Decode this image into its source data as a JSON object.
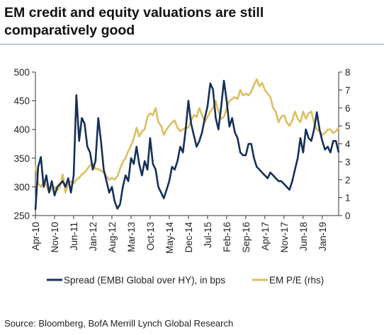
{
  "title": "EM credit and equity valuations are still comparatively good",
  "source": "Source: Bloomberg, BofA Merrill Lynch Global Research",
  "chart_data": {
    "type": "line",
    "title": "EM credit and equity valuations are still comparatively good",
    "x_tick_labels": [
      "Apr-10",
      "Nov-10",
      "Jun-11",
      "Jan-12",
      "Aug-12",
      "Mar-13",
      "Oct-13",
      "May-14",
      "Dec-14",
      "Jul-15",
      "Feb-16",
      "Sep-16",
      "Apr-17",
      "Nov-17",
      "Jun-18",
      "Jan-19"
    ],
    "x_range": [
      "2010-04",
      "2019-07"
    ],
    "y_left": {
      "ticks": [
        250,
        300,
        350,
        400,
        450,
        500
      ],
      "range": [
        250,
        500
      ]
    },
    "y_right": {
      "ticks": [
        0,
        1,
        2,
        3,
        4,
        5,
        6,
        7,
        8
      ],
      "range": [
        0,
        8
      ],
      "label": "rhs"
    },
    "legend_position": "bottom",
    "grid": false,
    "series": [
      {
        "name": "Spread (EMBI Global over HY), in bps",
        "axis": "left",
        "color": "#14305a",
        "points": [
          [
            "2010-04",
            260
          ],
          [
            "2010-05",
            335
          ],
          [
            "2010-06",
            352
          ],
          [
            "2010-07",
            300
          ],
          [
            "2010-08",
            320
          ],
          [
            "2010-09",
            290
          ],
          [
            "2010-10",
            310
          ],
          [
            "2010-11",
            285
          ],
          [
            "2010-12",
            300
          ],
          [
            "2011-01",
            305
          ],
          [
            "2011-02",
            310
          ],
          [
            "2011-03",
            300
          ],
          [
            "2011-04",
            315
          ],
          [
            "2011-05",
            290
          ],
          [
            "2011-06",
            320
          ],
          [
            "2011-07",
            460
          ],
          [
            "2011-08",
            380
          ],
          [
            "2011-09",
            420
          ],
          [
            "2011-10",
            410
          ],
          [
            "2011-11",
            370
          ],
          [
            "2011-12",
            360
          ],
          [
            "2012-01",
            330
          ],
          [
            "2012-02",
            345
          ],
          [
            "2012-03",
            420
          ],
          [
            "2012-04",
            380
          ],
          [
            "2012-05",
            330
          ],
          [
            "2012-06",
            310
          ],
          [
            "2012-07",
            290
          ],
          [
            "2012-08",
            300
          ],
          [
            "2012-09",
            275
          ],
          [
            "2012-10",
            262
          ],
          [
            "2012-11",
            270
          ],
          [
            "2012-12",
            300
          ],
          [
            "2013-01",
            320
          ],
          [
            "2013-02",
            310
          ],
          [
            "2013-03",
            350
          ],
          [
            "2013-04",
            340
          ],
          [
            "2013-05",
            370
          ],
          [
            "2013-06",
            340
          ],
          [
            "2013-07",
            320
          ],
          [
            "2013-08",
            345
          ],
          [
            "2013-09",
            330
          ],
          [
            "2013-10",
            385
          ],
          [
            "2013-11",
            340
          ],
          [
            "2013-12",
            330
          ],
          [
            "2014-01",
            300
          ],
          [
            "2014-02",
            290
          ],
          [
            "2014-03",
            280
          ],
          [
            "2014-04",
            295
          ],
          [
            "2014-05",
            310
          ],
          [
            "2014-06",
            335
          ],
          [
            "2014-07",
            330
          ],
          [
            "2014-08",
            345
          ],
          [
            "2014-09",
            370
          ],
          [
            "2014-10",
            360
          ],
          [
            "2014-11",
            400
          ],
          [
            "2014-12",
            450
          ],
          [
            "2015-01",
            410
          ],
          [
            "2015-02",
            390
          ],
          [
            "2015-03",
            370
          ],
          [
            "2015-04",
            380
          ],
          [
            "2015-05",
            395
          ],
          [
            "2015-06",
            420
          ],
          [
            "2015-07",
            440
          ],
          [
            "2015-08",
            480
          ],
          [
            "2015-09",
            470
          ],
          [
            "2015-10",
            420
          ],
          [
            "2015-11",
            400
          ],
          [
            "2015-12",
            440
          ],
          [
            "2016-01",
            485
          ],
          [
            "2016-02",
            450
          ],
          [
            "2016-03",
            405
          ],
          [
            "2016-04",
            420
          ],
          [
            "2016-05",
            395
          ],
          [
            "2016-06",
            385
          ],
          [
            "2016-07",
            360
          ],
          [
            "2016-08",
            355
          ],
          [
            "2016-09",
            355
          ],
          [
            "2016-10",
            375
          ],
          [
            "2016-11",
            375
          ],
          [
            "2016-12",
            350
          ],
          [
            "2017-01",
            335
          ],
          [
            "2017-02",
            330
          ],
          [
            "2017-03",
            325
          ],
          [
            "2017-04",
            320
          ],
          [
            "2017-05",
            315
          ],
          [
            "2017-06",
            325
          ],
          [
            "2017-07",
            320
          ],
          [
            "2017-08",
            315
          ],
          [
            "2017-09",
            310
          ],
          [
            "2017-10",
            310
          ],
          [
            "2017-11",
            305
          ],
          [
            "2017-12",
            300
          ],
          [
            "2018-01",
            295
          ],
          [
            "2018-02",
            310
          ],
          [
            "2018-03",
            330
          ],
          [
            "2018-04",
            350
          ],
          [
            "2018-05",
            385
          ],
          [
            "2018-06",
            360
          ],
          [
            "2018-07",
            400
          ],
          [
            "2018-08",
            385
          ],
          [
            "2018-09",
            380
          ],
          [
            "2018-10",
            400
          ],
          [
            "2018-11",
            430
          ],
          [
            "2018-12",
            400
          ],
          [
            "2019-01",
            380
          ],
          [
            "2019-02",
            365
          ],
          [
            "2019-03",
            370
          ],
          [
            "2019-04",
            360
          ],
          [
            "2019-05",
            380
          ],
          [
            "2019-06",
            380
          ],
          [
            "2019-07",
            360
          ]
        ]
      },
      {
        "name": "EM P/E (rhs)",
        "axis": "right",
        "color": "#dcbf5f",
        "points": [
          [
            "2010-04",
            2.8
          ],
          [
            "2010-05",
            1.8
          ],
          [
            "2010-06",
            1.6
          ],
          [
            "2010-07",
            1.9
          ],
          [
            "2010-08",
            1.7
          ],
          [
            "2010-09",
            1.3
          ],
          [
            "2010-10",
            1.5
          ],
          [
            "2010-11",
            1.6
          ],
          [
            "2010-12",
            1.4
          ],
          [
            "2011-01",
            1.6
          ],
          [
            "2011-02",
            2.3
          ],
          [
            "2011-03",
            1.3
          ],
          [
            "2011-04",
            1.8
          ],
          [
            "2011-05",
            1.9
          ],
          [
            "2011-06",
            1.8
          ],
          [
            "2011-07",
            2.0
          ],
          [
            "2011-08",
            2.1
          ],
          [
            "2011-09",
            2.3
          ],
          [
            "2011-10",
            2.4
          ],
          [
            "2011-11",
            2.6
          ],
          [
            "2011-12",
            2.8
          ],
          [
            "2012-01",
            2.9
          ],
          [
            "2012-02",
            2.6
          ],
          [
            "2012-03",
            2.6
          ],
          [
            "2012-04",
            2.5
          ],
          [
            "2012-05",
            2.4
          ],
          [
            "2012-06",
            2.2
          ],
          [
            "2012-07",
            2.0
          ],
          [
            "2012-08",
            2.1
          ],
          [
            "2012-09",
            2.0
          ],
          [
            "2012-10",
            2.2
          ],
          [
            "2012-11",
            2.6
          ],
          [
            "2012-12",
            3.0
          ],
          [
            "2013-01",
            3.2
          ],
          [
            "2013-02",
            3.6
          ],
          [
            "2013-03",
            3.9
          ],
          [
            "2013-04",
            4.3
          ],
          [
            "2013-05",
            4.9
          ],
          [
            "2013-06",
            4.4
          ],
          [
            "2013-07",
            4.7
          ],
          [
            "2013-08",
            4.8
          ],
          [
            "2013-09",
            5.5
          ],
          [
            "2013-10",
            5.7
          ],
          [
            "2013-11",
            5.6
          ],
          [
            "2013-12",
            6.0
          ],
          [
            "2014-01",
            5.2
          ],
          [
            "2014-02",
            5.0
          ],
          [
            "2014-03",
            4.5
          ],
          [
            "2014-04",
            4.8
          ],
          [
            "2014-05",
            5.0
          ],
          [
            "2014-06",
            5.2
          ],
          [
            "2014-07",
            5.3
          ],
          [
            "2014-08",
            4.9
          ],
          [
            "2014-09",
            4.7
          ],
          [
            "2014-10",
            4.8
          ],
          [
            "2014-11",
            4.9
          ],
          [
            "2014-12",
            4.9
          ],
          [
            "2015-01",
            5.3
          ],
          [
            "2015-02",
            5.6
          ],
          [
            "2015-03",
            5.5
          ],
          [
            "2015-04",
            6.0
          ],
          [
            "2015-05",
            5.6
          ],
          [
            "2015-06",
            5.2
          ],
          [
            "2015-07",
            5.5
          ],
          [
            "2015-08",
            5.8
          ],
          [
            "2015-09",
            6.0
          ],
          [
            "2015-10",
            6.4
          ],
          [
            "2015-11",
            5.8
          ],
          [
            "2015-12",
            5.4
          ],
          [
            "2016-01",
            5.5
          ],
          [
            "2016-02",
            6.0
          ],
          [
            "2016-03",
            6.4
          ],
          [
            "2016-04",
            6.5
          ],
          [
            "2016-05",
            6.6
          ],
          [
            "2016-06",
            6.5
          ],
          [
            "2016-07",
            7.0
          ],
          [
            "2016-08",
            6.7
          ],
          [
            "2016-09",
            6.8
          ],
          [
            "2016-10",
            6.7
          ],
          [
            "2016-11",
            6.9
          ],
          [
            "2016-12",
            7.3
          ],
          [
            "2017-01",
            7.6
          ],
          [
            "2017-02",
            7.2
          ],
          [
            "2017-03",
            7.4
          ],
          [
            "2017-04",
            7.0
          ],
          [
            "2017-05",
            6.8
          ],
          [
            "2017-06",
            6.6
          ],
          [
            "2017-07",
            6.0
          ],
          [
            "2017-08",
            5.8
          ],
          [
            "2017-09",
            5.2
          ],
          [
            "2017-10",
            5.5
          ],
          [
            "2017-11",
            5.6
          ],
          [
            "2017-12",
            5.2
          ],
          [
            "2018-01",
            5.0
          ],
          [
            "2018-02",
            5.3
          ],
          [
            "2018-03",
            5.8
          ],
          [
            "2018-04",
            5.4
          ],
          [
            "2018-05",
            5.2
          ],
          [
            "2018-06",
            5.8
          ],
          [
            "2018-07",
            5.4
          ],
          [
            "2018-08",
            5.7
          ],
          [
            "2018-09",
            5.8
          ],
          [
            "2018-10",
            5.2
          ],
          [
            "2018-11",
            4.8
          ],
          [
            "2018-12",
            4.7
          ],
          [
            "2019-01",
            4.5
          ],
          [
            "2019-02",
            4.6
          ],
          [
            "2019-03",
            4.8
          ],
          [
            "2019-04",
            4.8
          ],
          [
            "2019-05",
            4.6
          ],
          [
            "2019-06",
            4.7
          ],
          [
            "2019-07",
            4.9
          ]
        ]
      }
    ]
  }
}
